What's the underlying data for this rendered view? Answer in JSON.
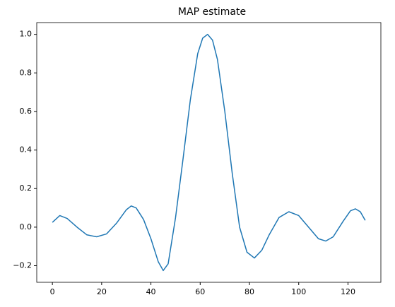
{
  "chart_data": {
    "type": "line",
    "title": "MAP estimate",
    "x": [
      0,
      3,
      6,
      10,
      14,
      18,
      22,
      26,
      30,
      32,
      34,
      37,
      40,
      43,
      45,
      47,
      50,
      53,
      56,
      59,
      61,
      63,
      65,
      67,
      70,
      73,
      76,
      79,
      82,
      85,
      88,
      92,
      96,
      100,
      104,
      108,
      111,
      114,
      118,
      121,
      123,
      125,
      127
    ],
    "series": [
      {
        "color": "#1f77b4",
        "values": [
          0.025,
          0.06,
          0.045,
          0.0,
          -0.04,
          -0.05,
          -0.035,
          0.02,
          0.09,
          0.11,
          0.1,
          0.04,
          -0.06,
          -0.18,
          -0.225,
          -0.19,
          0.05,
          0.35,
          0.66,
          0.9,
          0.98,
          1.0,
          0.97,
          0.87,
          0.6,
          0.28,
          0.0,
          -0.13,
          -0.16,
          -0.12,
          -0.04,
          0.05,
          0.08,
          0.06,
          0.0,
          -0.06,
          -0.072,
          -0.05,
          0.03,
          0.085,
          0.095,
          0.08,
          0.035
        ]
      }
    ],
    "xlim": [
      -6.35,
      133.35
    ],
    "ylim": [
      -0.286,
      1.061
    ],
    "xticks": [
      0,
      20,
      40,
      60,
      80,
      100,
      120
    ],
    "yticks": [
      {
        "value": -0.2,
        "label": "−0.2"
      },
      {
        "value": 0,
        "label": "0.0"
      },
      0.2,
      0.4,
      0.6,
      0.8,
      {
        "value": 1,
        "label": "1.0"
      }
    ],
    "grid": false
  }
}
